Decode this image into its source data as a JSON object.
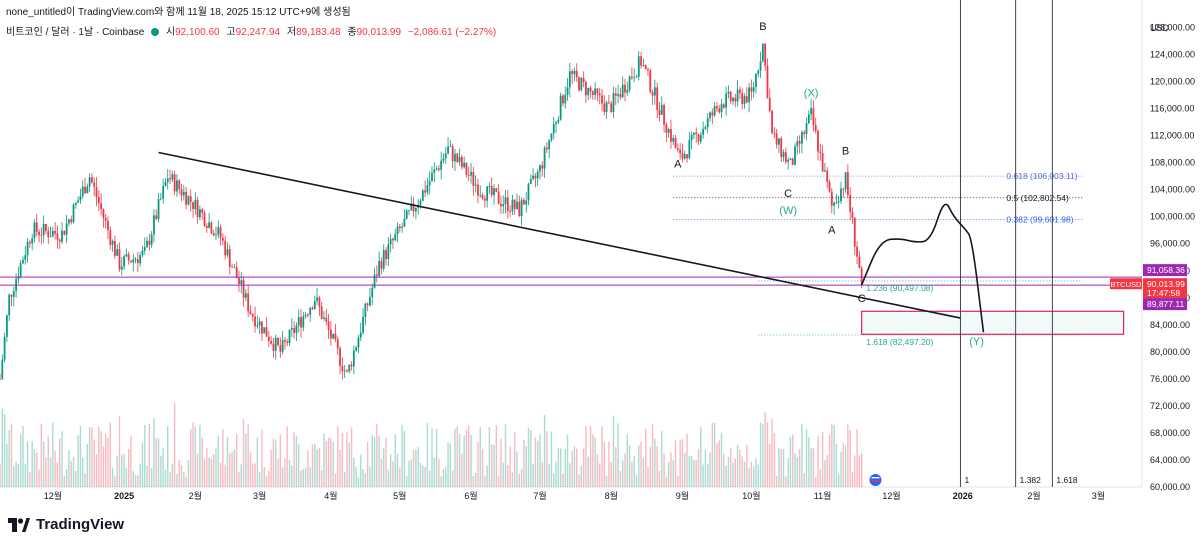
{
  "header": {
    "credit": "none_untitled이 TradingView.com와 함께 11월 18, 2025 15:12 UTC+9에 생성됨",
    "symbol": "비트코인 / 달러 · 1날 · Coinbase",
    "open_label": "시",
    "open": "92,100.60",
    "high_label": "고",
    "high": "92,247.94",
    "low_label": "저",
    "low": "89,183.48",
    "close_label": "종",
    "close": "90,013.99",
    "change": "−2,086.61 (−2.27%)"
  },
  "brand": {
    "name": "TradingView",
    "logo_icon": "tradingview-logo-icon"
  },
  "chart_data": {
    "type": "candlestick",
    "currency_label": "USD",
    "ylim": [
      60000,
      130000
    ],
    "y_ticks": [
      60000,
      64000,
      68000,
      72000,
      76000,
      80000,
      84000,
      88000,
      92000,
      96000,
      100000,
      104000,
      108000,
      112000,
      116000,
      120000,
      124000,
      128000
    ],
    "y_tick_labels": [
      "60,000.00",
      "64,000.00",
      "68,000.00",
      "72,000.00",
      "76,000.00",
      "80,000.00",
      "84,000.00",
      "88,000.00",
      "92,000.00",
      "96,000.00",
      "100,000.00",
      "104,000.00",
      "108,000.00",
      "112,000.00",
      "116,000.00",
      "120,000.00",
      "124,000.00",
      "128,000.00"
    ],
    "x_range": [
      "2024-11-08",
      "2026-03-20"
    ],
    "x_ticks": [
      {
        "date": "2024-12-01",
        "label": "12월"
      },
      {
        "date": "2025-01-01",
        "label": "2025"
      },
      {
        "date": "2025-02-01",
        "label": "2월"
      },
      {
        "date": "2025-03-01",
        "label": "3월"
      },
      {
        "date": "2025-04-01",
        "label": "4월"
      },
      {
        "date": "2025-05-01",
        "label": "5월"
      },
      {
        "date": "2025-06-01",
        "label": "6월"
      },
      {
        "date": "2025-07-01",
        "label": "7월"
      },
      {
        "date": "2025-08-01",
        "label": "8월"
      },
      {
        "date": "2025-09-01",
        "label": "9월"
      },
      {
        "date": "2025-10-01",
        "label": "10월"
      },
      {
        "date": "2025-11-01",
        "label": "11월"
      },
      {
        "date": "2025-12-01",
        "label": "12월"
      },
      {
        "date": "2026-01-01",
        "label": "2026"
      },
      {
        "date": "2026-02-01",
        "label": "2월"
      },
      {
        "date": "2026-03-01",
        "label": "3월"
      }
    ],
    "price_path": [
      [
        "2024-11-08",
        76000
      ],
      [
        "2024-11-12",
        88000
      ],
      [
        "2024-11-22",
        98000
      ],
      [
        "2024-12-05",
        97500
      ],
      [
        "2024-12-17",
        106000
      ],
      [
        "2024-12-30",
        93000
      ],
      [
        "2025-01-10",
        94500
      ],
      [
        "2025-01-20",
        106000
      ],
      [
        "2025-01-31",
        102000
      ],
      [
        "2025-02-12",
        97000
      ],
      [
        "2025-02-25",
        86000
      ],
      [
        "2025-03-10",
        80000
      ],
      [
        "2025-03-25",
        88000
      ],
      [
        "2025-04-08",
        76500
      ],
      [
        "2025-04-22",
        93000
      ],
      [
        "2025-05-10",
        103000
      ],
      [
        "2025-05-22",
        110000
      ],
      [
        "2025-06-05",
        104000
      ],
      [
        "2025-06-22",
        101000
      ],
      [
        "2025-07-01",
        107000
      ],
      [
        "2025-07-14",
        121000
      ],
      [
        "2025-07-31",
        116000
      ],
      [
        "2025-08-14",
        123000
      ],
      [
        "2025-08-31",
        108500
      ],
      [
        "2025-09-18",
        117000
      ],
      [
        "2025-10-01",
        118000
      ],
      [
        "2025-10-06",
        125500
      ],
      [
        "2025-10-10",
        112000
      ],
      [
        "2025-10-18",
        107500
      ],
      [
        "2025-10-27",
        115000
      ],
      [
        "2025-11-05",
        101500
      ],
      [
        "2025-11-11",
        105500
      ],
      [
        "2025-11-18",
        90000
      ]
    ],
    "current_price": 90013.99,
    "trendline": {
      "from": [
        "2025-01-16",
        109500
      ],
      "to": [
        "2025-12-31",
        85000
      ]
    },
    "horizontal_levels": [
      {
        "price": 91058.36,
        "color": "#9c27b0"
      },
      {
        "price": 89877.11,
        "color": "#9c27b0"
      }
    ],
    "fib_levels": [
      {
        "label": "0.618 (106,003.11)",
        "price": 106003.11,
        "color": "#5b6bd5"
      },
      {
        "label": "0.5 (102,802.54)",
        "price": 102802.54,
        "color": "#131722"
      },
      {
        "label": "0.382 (99,601.98)",
        "price": 99601.98,
        "color": "#2962ff"
      },
      {
        "label": "1.236 (90,497.08)",
        "price": 90497.08,
        "color": "#22ab94"
      },
      {
        "label": "1.618 (82,497.20)",
        "price": 82497.2,
        "color": "#22ab94"
      }
    ],
    "target_box": {
      "from": [
        "2025-11-18",
        86000
      ],
      "to": [
        "2026-03-12",
        82600
      ],
      "color": "#e91e63"
    },
    "projection_path": [
      [
        "2025-11-18",
        89900
      ],
      [
        "2025-11-26",
        96500
      ],
      [
        "2025-12-05",
        96800
      ],
      [
        "2025-12-11",
        96200
      ],
      [
        "2025-12-18",
        96400
      ],
      [
        "2025-12-24",
        102800
      ],
      [
        "2025-12-28",
        100000
      ],
      [
        "2026-01-02",
        98200
      ],
      [
        "2026-01-05",
        96800
      ],
      [
        "2026-01-10",
        82900
      ]
    ],
    "time_lines": [
      {
        "date": "2025-12-31",
        "label": "1"
      },
      {
        "date": "2026-01-24",
        "label": "1.382"
      },
      {
        "date": "2026-02-09",
        "label": "1.618"
      }
    ],
    "wave_labels": [
      {
        "text": "B",
        "date": "2025-10-06",
        "price": 127600,
        "color": "#131722"
      },
      {
        "text": "A",
        "date": "2025-08-30",
        "price": 107300,
        "color": "#131722"
      },
      {
        "text": "C",
        "date": "2025-10-17",
        "price": 102900,
        "color": "#131722"
      },
      {
        "text": "(W)",
        "date": "2025-10-17",
        "price": 100400,
        "color": "#22ab94"
      },
      {
        "text": "(X)",
        "date": "2025-10-27",
        "price": 117800,
        "color": "#22ab94"
      },
      {
        "text": "B",
        "date": "2025-11-11",
        "price": 109200,
        "color": "#131722"
      },
      {
        "text": "A",
        "date": "2025-11-05",
        "price": 97500,
        "color": "#131722"
      },
      {
        "text": "C",
        "date": "2025-11-18",
        "price": 87400,
        "color": "#131722"
      },
      {
        "text": "(Y)",
        "date": "2026-01-07",
        "price": 81000,
        "color": "#22ab94"
      }
    ],
    "price_tags": [
      {
        "label": "91,058.36",
        "price": 91058.36,
        "color": "#9c27b0"
      },
      {
        "label": "BTCUSD",
        "price": 90013.99,
        "color": "#f23645"
      },
      {
        "label": "90,013.99",
        "price": 90013.99,
        "color": "#f23645"
      },
      {
        "label": "17:47:58",
        "price": 90013.99,
        "color": "#f23645"
      },
      {
        "label": "89,877.11",
        "price": 89877.11,
        "color": "#9c27b0"
      }
    ]
  }
}
